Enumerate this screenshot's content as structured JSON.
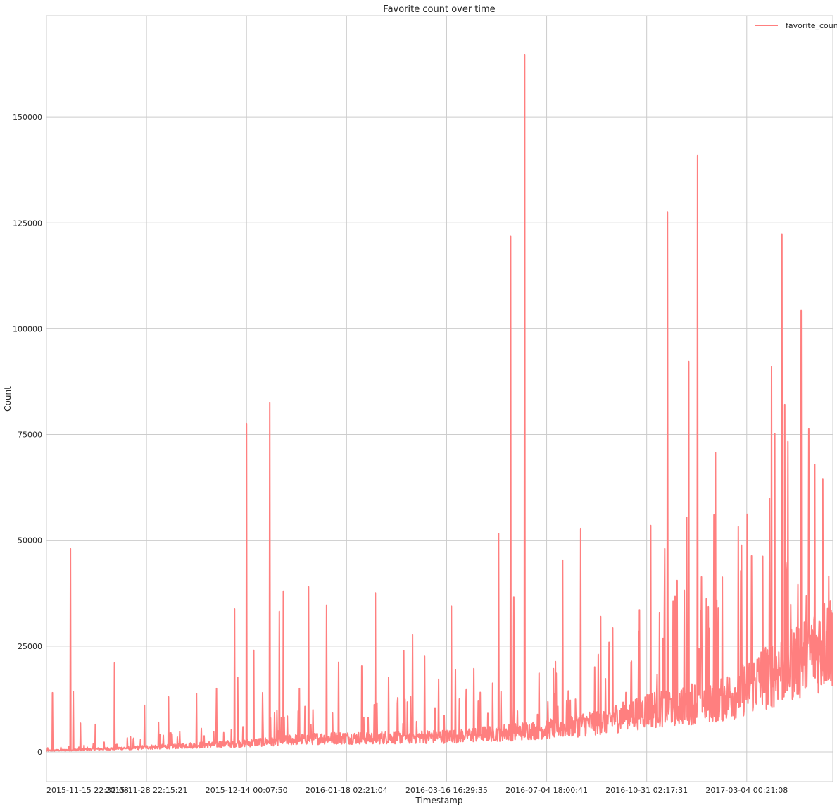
{
  "chart_data": {
    "type": "line",
    "title": "Favorite count over time",
    "xlabel": "Timestamp",
    "ylabel": "Count",
    "ylim": [
      -7000,
      174000
    ],
    "y_ticks": [
      0,
      25000,
      50000,
      75000,
      100000,
      125000,
      150000
    ],
    "x_tick_labels": [
      "2015-11-15 22:32:08",
      "2015-11-28 22:15:21",
      "2015-12-14 00:07:50",
      "2016-01-18 02:21:04",
      "2016-03-16 16:29:35",
      "2016-07-04 18:00:41",
      "2016-10-31 02:17:31",
      "2017-03-04 00:21:08"
    ],
    "x_tick_positions": [
      0,
      250,
      500,
      750,
      1000,
      1250,
      1500,
      1750
    ],
    "x_range": [
      0,
      1965
    ],
    "grid": true,
    "legend": {
      "position": "top-right",
      "entries": [
        "favorite_count"
      ]
    },
    "color": "#ff7f7f",
    "series": [
      {
        "name": "favorite_count",
        "baseline": [
          [
            0,
            300
          ],
          [
            100,
            600
          ],
          [
            200,
            900
          ],
          [
            300,
            1300
          ],
          [
            400,
            1700
          ],
          [
            500,
            2100
          ],
          [
            600,
            2800
          ],
          [
            700,
            3300
          ],
          [
            800,
            3300
          ],
          [
            900,
            3500
          ],
          [
            1000,
            3700
          ],
          [
            1100,
            4300
          ],
          [
            1200,
            5000
          ],
          [
            1300,
            6000
          ],
          [
            1400,
            7500
          ],
          [
            1500,
            10000
          ],
          [
            1600,
            11500
          ],
          [
            1700,
            13000
          ],
          [
            1800,
            18000
          ],
          [
            1900,
            23000
          ],
          [
            1965,
            27000
          ]
        ],
        "peaks": [
          [
            15,
            14000
          ],
          [
            60,
            48000
          ],
          [
            67,
            14300
          ],
          [
            85,
            6800
          ],
          [
            122,
            6500
          ],
          [
            170,
            21000
          ],
          [
            245,
            11000
          ],
          [
            280,
            7000
          ],
          [
            305,
            13000
          ],
          [
            375,
            13800
          ],
          [
            425,
            15000
          ],
          [
            470,
            33800
          ],
          [
            478,
            17600
          ],
          [
            500,
            77600
          ],
          [
            518,
            24000
          ],
          [
            540,
            14000
          ],
          [
            558,
            82500
          ],
          [
            582,
            33200
          ],
          [
            592,
            38000
          ],
          [
            632,
            15000
          ],
          [
            655,
            39000
          ],
          [
            700,
            34700
          ],
          [
            730,
            21200
          ],
          [
            788,
            20300
          ],
          [
            822,
            37600
          ],
          [
            855,
            17600
          ],
          [
            893,
            23900
          ],
          [
            915,
            27700
          ],
          [
            945,
            22600
          ],
          [
            980,
            17200
          ],
          [
            1012,
            34400
          ],
          [
            1022,
            19400
          ],
          [
            1068,
            19700
          ],
          [
            1130,
            51600
          ],
          [
            1160,
            121800
          ],
          [
            1168,
            36600
          ],
          [
            1195,
            164700
          ],
          [
            1290,
            45300
          ],
          [
            1335,
            52800
          ],
          [
            1385,
            32000
          ],
          [
            1415,
            29300
          ],
          [
            1480,
            28500
          ],
          [
            1510,
            53500
          ],
          [
            1545,
            48000
          ],
          [
            1552,
            127500
          ],
          [
            1600,
            55400
          ],
          [
            1605,
            92300
          ],
          [
            1627,
            140900
          ],
          [
            1668,
            56000
          ],
          [
            1672,
            70700
          ],
          [
            1762,
            46300
          ],
          [
            1790,
            46200
          ],
          [
            1812,
            91000
          ],
          [
            1820,
            75200
          ],
          [
            1838,
            122300
          ],
          [
            1845,
            82100
          ],
          [
            1886,
            104300
          ],
          [
            1905,
            76300
          ],
          [
            1920,
            67900
          ],
          [
            1940,
            64400
          ],
          [
            1955,
            41500
          ]
        ]
      }
    ]
  }
}
